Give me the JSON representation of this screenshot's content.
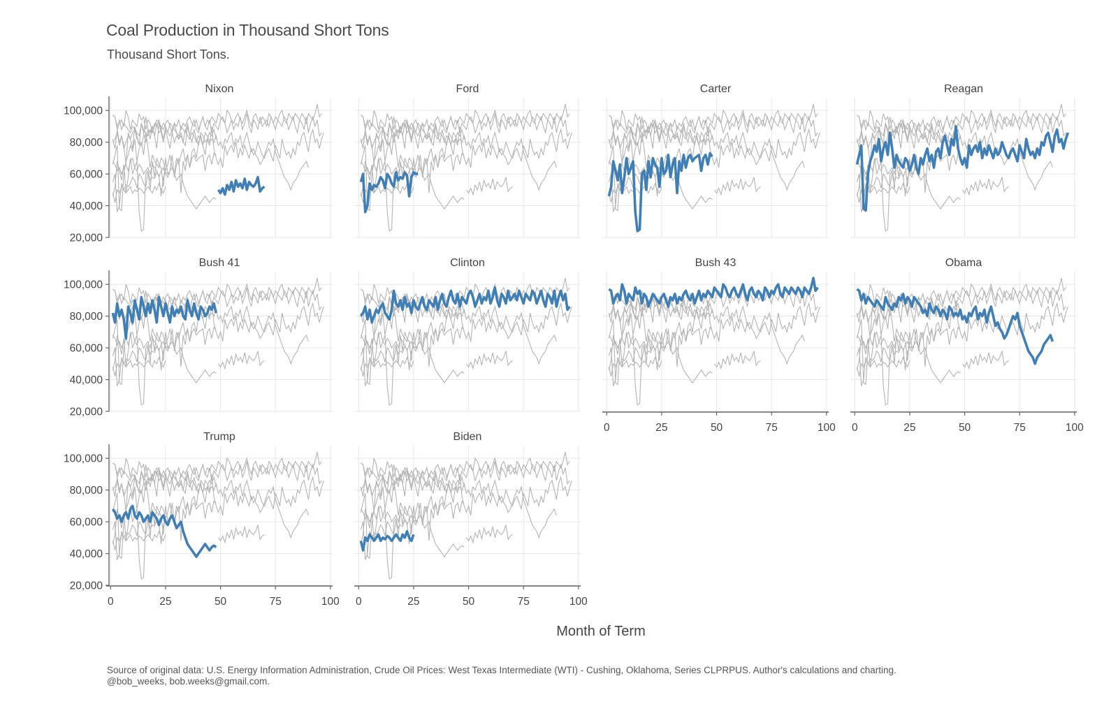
{
  "chart_data": {
    "type": "line",
    "title": "Coal Production in Thousand Short Tons",
    "subtitle": "Thousand Short Tons.",
    "xlabel": "Month of Term",
    "ylabel": "",
    "caption_line1": "Source of original data: U.S. Energy Information Administration, Crude Oil Prices: West Texas Intermediate (WTI) - Cushing, Oklahoma, Series CLPRPUS. Author's calculations and charting.",
    "caption_line2": "@bob_weeks, bob.weeks@gmail.com.",
    "xlim": [
      -2,
      101
    ],
    "ylim": [
      20000,
      108000
    ],
    "x_ticks": [
      0,
      25,
      50,
      75,
      100
    ],
    "x_tick_labels": [
      "0",
      "25",
      "50",
      "75",
      "100"
    ],
    "y_ticks": [
      20000,
      40000,
      60000,
      80000,
      100000
    ],
    "y_tick_labels": [
      "20,000",
      "40,000",
      "60,000",
      "80,000",
      "100,000"
    ],
    "grid": true,
    "highlight_color": "#3f7fb5",
    "background_color": "#b3b3b3",
    "panels": [
      "Nixon",
      "Ford",
      "Carter",
      "Reagan",
      "Bush 41",
      "Clinton",
      "Bush 43",
      "Obama",
      "Trump",
      "Biden"
    ],
    "series": [
      {
        "name": "Nixon",
        "x_start": 49,
        "values": [
          50000,
          48000,
          51000,
          47000,
          53000,
          50000,
          55000,
          49000,
          56000,
          52000,
          54000,
          51000,
          57000,
          50000,
          55000,
          53000,
          52000,
          54000,
          58000,
          49000,
          51000,
          52000
        ]
      },
      {
        "name": "Ford",
        "x_start": 1,
        "values": [
          55000,
          60000,
          36000,
          40000,
          54000,
          50000,
          53000,
          52000,
          54000,
          58000,
          56000,
          51000,
          60000,
          58000,
          54000,
          52000,
          61000,
          56000,
          58000,
          57000,
          61000,
          59000,
          46000,
          58000,
          61000,
          60000,
          60000
        ]
      },
      {
        "name": "Carter",
        "x_start": 1,
        "values": [
          46000,
          52000,
          68000,
          62000,
          56000,
          66000,
          48000,
          58000,
          70000,
          60000,
          64000,
          68000,
          36000,
          24000,
          25000,
          60000,
          62000,
          50000,
          68000,
          58000,
          70000,
          66000,
          64000,
          52000,
          70000,
          60000,
          62000,
          72000,
          58000,
          66000,
          70000,
          48000,
          68000,
          62000,
          72000,
          64000,
          70000,
          72000,
          68000,
          70000,
          71000,
          72000,
          62000,
          70000,
          72000,
          66000,
          73000,
          71000
        ]
      },
      {
        "name": "Reagan",
        "x_start": 1,
        "values": [
          66000,
          72000,
          78000,
          38000,
          37000,
          60000,
          68000,
          72000,
          78000,
          74000,
          82000,
          68000,
          76000,
          80000,
          72000,
          86000,
          76000,
          64000,
          72000,
          68000,
          66000,
          64000,
          70000,
          68000,
          62000,
          66000,
          72000,
          64000,
          60000,
          70000,
          66000,
          72000,
          76000,
          68000,
          72000,
          64000,
          74000,
          76000,
          70000,
          80000,
          84000,
          78000,
          72000,
          82000,
          78000,
          90000,
          76000,
          70000,
          66000,
          70000,
          64000,
          78000,
          72000,
          76000,
          78000,
          74000,
          80000,
          70000,
          76000,
          72000,
          78000,
          74000,
          70000,
          76000,
          72000,
          74000,
          80000,
          76000,
          72000,
          70000,
          74000,
          76000,
          72000,
          68000,
          78000,
          74000,
          70000,
          82000,
          76000,
          72000,
          74000,
          70000,
          76000,
          72000,
          80000,
          78000,
          84000,
          86000,
          80000,
          74000,
          84000,
          88000,
          80000,
          82000,
          76000,
          82000,
          86000
        ]
      },
      {
        "name": "Bush 41",
        "x_start": 1,
        "values": [
          82000,
          76000,
          88000,
          80000,
          84000,
          78000,
          66000,
          86000,
          82000,
          76000,
          90000,
          84000,
          78000,
          92000,
          86000,
          80000,
          88000,
          82000,
          90000,
          84000,
          76000,
          92000,
          86000,
          80000,
          88000,
          82000,
          76000,
          86000,
          80000,
          84000,
          82000,
          86000,
          80000,
          78000,
          90000,
          84000,
          80000,
          88000,
          82000,
          78000,
          86000,
          84000,
          80000,
          82000,
          86000,
          84000,
          88000,
          82000
        ]
      },
      {
        "name": "Clinton",
        "x_start": 1,
        "values": [
          80000,
          82000,
          86000,
          78000,
          84000,
          76000,
          80000,
          84000,
          82000,
          86000,
          88000,
          82000,
          80000,
          78000,
          84000,
          96000,
          88000,
          86000,
          90000,
          84000,
          92000,
          86000,
          88000,
          82000,
          90000,
          86000,
          84000,
          88000,
          92000,
          86000,
          84000,
          90000,
          88000,
          86000,
          92000,
          84000,
          90000,
          94000,
          88000,
          86000,
          92000,
          96000,
          90000,
          88000,
          94000,
          86000,
          92000,
          90000,
          88000,
          94000,
          96000,
          92000,
          86000,
          90000,
          94000,
          88000,
          92000,
          90000,
          96000,
          88000,
          92000,
          98000,
          90000,
          86000,
          94000,
          92000,
          88000,
          96000,
          90000,
          92000,
          94000,
          90000,
          96000,
          92000,
          88000,
          94000,
          92000,
          90000,
          96000,
          94000,
          88000,
          92000,
          96000,
          90000,
          86000,
          94000,
          92000,
          88000,
          96000,
          86000,
          92000,
          96000,
          90000,
          94000,
          84000,
          86000
        ]
      },
      {
        "name": "Bush 43",
        "x_start": 1,
        "values": [
          97000,
          96000,
          88000,
          92000,
          94000,
          90000,
          100000,
          96000,
          88000,
          94000,
          92000,
          90000,
          98000,
          94000,
          96000,
          88000,
          94000,
          92000,
          86000,
          90000,
          94000,
          92000,
          90000,
          88000,
          92000,
          94000,
          90000,
          86000,
          92000,
          90000,
          94000,
          88000,
          92000,
          90000,
          94000,
          96000,
          92000,
          90000,
          94000,
          88000,
          92000,
          96000,
          90000,
          94000,
          92000,
          96000,
          94000,
          92000,
          98000,
          96000,
          94000,
          92000,
          100000,
          98000,
          94000,
          92000,
          96000,
          98000,
          94000,
          92000,
          96000,
          100000,
          94000,
          90000,
          96000,
          98000,
          94000,
          92000,
          96000,
          94000,
          90000,
          98000,
          96000,
          92000,
          96000,
          94000,
          98000,
          100000,
          94000,
          92000,
          98000,
          96000,
          94000,
          98000,
          96000,
          94000,
          98000,
          96000,
          92000,
          98000,
          96000,
          94000,
          98000,
          104000,
          96000,
          98000
        ]
      },
      {
        "name": "Obama",
        "x_start": 1,
        "values": [
          97000,
          96000,
          90000,
          94000,
          88000,
          92000,
          90000,
          88000,
          86000,
          90000,
          88000,
          86000,
          84000,
          92000,
          88000,
          86000,
          84000,
          88000,
          86000,
          92000,
          90000,
          94000,
          88000,
          92000,
          90000,
          86000,
          92000,
          90000,
          88000,
          86000,
          82000,
          84000,
          80000,
          88000,
          84000,
          82000,
          86000,
          84000,
          80000,
          84000,
          82000,
          78000,
          86000,
          84000,
          80000,
          82000,
          80000,
          84000,
          78000,
          80000,
          76000,
          82000,
          80000,
          84000,
          86000,
          78000,
          82000,
          80000,
          84000,
          76000,
          82000,
          86000,
          80000,
          74000,
          76000,
          72000,
          70000,
          66000,
          68000,
          72000,
          76000,
          80000,
          78000,
          82000,
          74000,
          70000,
          66000,
          62000,
          58000,
          56000,
          54000,
          50000,
          54000,
          56000,
          58000,
          62000,
          64000,
          66000,
          68000,
          64000
        ]
      },
      {
        "name": "Trump",
        "x_start": 1,
        "values": [
          68000,
          66000,
          62000,
          64000,
          60000,
          64000,
          66000,
          62000,
          68000,
          70000,
          64000,
          62000,
          66000,
          64000,
          60000,
          62000,
          64000,
          60000,
          66000,
          64000,
          62000,
          58000,
          62000,
          64000,
          60000,
          58000,
          62000,
          64000,
          60000,
          56000,
          58000,
          60000,
          54000,
          50000,
          46000,
          44000,
          42000,
          40000,
          38000,
          40000,
          42000,
          44000,
          46000,
          44000,
          42000,
          44000,
          45000,
          44000
        ]
      },
      {
        "name": "Biden",
        "x_start": 1,
        "values": [
          48000,
          42000,
          50000,
          48000,
          52000,
          50000,
          48000,
          50000,
          52000,
          48000,
          50000,
          49000,
          51000,
          50000,
          48000,
          50000,
          52000,
          50000,
          48000,
          52000,
          50000,
          54000,
          50000,
          48000,
          52000
        ]
      }
    ]
  }
}
